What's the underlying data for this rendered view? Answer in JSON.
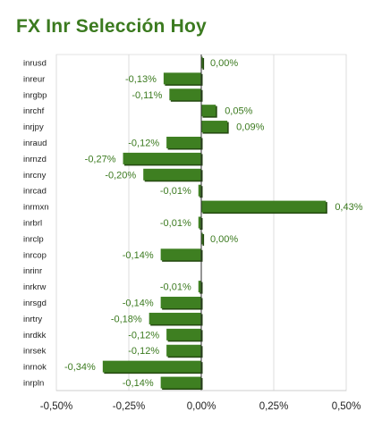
{
  "title": "FX Inr Selección Hoy",
  "chart_data": {
    "type": "bar",
    "orientation": "horizontal",
    "title": "FX Inr Selección Hoy",
    "categories": [
      "inrusd",
      "inreur",
      "inrgbp",
      "inrchf",
      "inrjpy",
      "inraud",
      "inrnzd",
      "inrcny",
      "inrcad",
      "inrmxn",
      "inrbrl",
      "inrclp",
      "inrcop",
      "inrinr",
      "inrkrw",
      "inrsgd",
      "inrtry",
      "inrdkk",
      "inrsek",
      "inrnok",
      "inrpln"
    ],
    "values": [
      0.0,
      -0.13,
      -0.11,
      0.05,
      0.09,
      -0.12,
      -0.27,
      -0.2,
      -0.01,
      0.43,
      -0.01,
      0.0,
      -0.14,
      null,
      -0.01,
      -0.14,
      -0.18,
      -0.12,
      -0.12,
      -0.34,
      -0.14
    ],
    "value_labels": [
      "0,00%",
      "-0,13%",
      "-0,11%",
      "0,05%",
      "0,09%",
      "-0,12%",
      "-0,27%",
      "-0,20%",
      "-0,01%",
      "0,43%",
      "-0,01%",
      "0,00%",
      "-0,14%",
      "",
      "-0,01%",
      "-0,14%",
      "-0,18%",
      "-0,12%",
      "-0,12%",
      "-0,34%",
      "-0,14%"
    ],
    "xlim": [
      -0.5,
      0.5
    ],
    "xticks": [
      -0.5,
      -0.25,
      0,
      0.25,
      0.5
    ],
    "xtick_labels": [
      "-0,50%",
      "-0,25%",
      "0,00%",
      "0,25%",
      "0,50%"
    ],
    "grid": "vertical",
    "legend": "none",
    "colors": {
      "bar": "#3e7f21",
      "bar_shadow": "#23480f",
      "title": "#3b7a1f",
      "value_label": "#3b7a1f"
    }
  }
}
